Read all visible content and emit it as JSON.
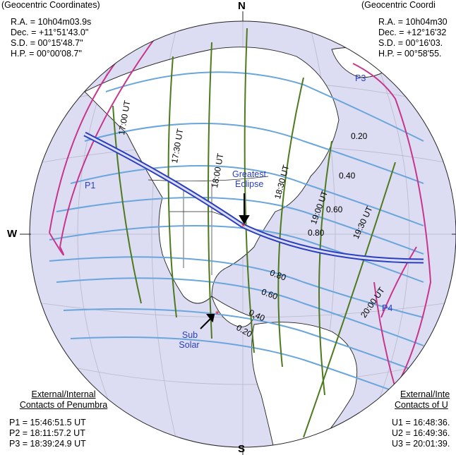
{
  "left_panel": {
    "header": "(Geocentric Coordinates)",
    "lines": [
      "R.A. = 10h04m03.9s",
      "Dec. = +11°51'43.0\"",
      "S.D. =  00°15'48.7\"",
      "H.P. =  00°00'08.7\""
    ]
  },
  "right_panel": {
    "header": "(Geocentric Coordi",
    "lines": [
      "R.A. = 10h04m30",
      "Dec. = +12°16'32",
      "S.D. =  00°16'03.",
      "H.P. =  00°58'55."
    ]
  },
  "compass": {
    "north": "N",
    "south": "S",
    "west": "W"
  },
  "time_labels": [
    "17:00 UT",
    "17:30 UT",
    "18:00 UT",
    "18:30 UT",
    "19:00 UT",
    "19:30 UT",
    "20:00 UT"
  ],
  "magnitude_labels_north": [
    "0.20",
    "0.40",
    "0.60",
    "0.80"
  ],
  "magnitude_labels_south": [
    "0.80",
    "0.60",
    "0.40",
    "0.20"
  ],
  "contact_points": [
    "P1",
    "P3",
    "P4"
  ],
  "greatest_eclipse_label": [
    "Greatest",
    "Eclipse"
  ],
  "sub_solar_label": [
    "Sub",
    "Solar"
  ],
  "penumbra_contacts": {
    "title": [
      "External/Internal",
      "Contacts of Penumbra"
    ],
    "lines": [
      "P1 = 15:46:51.5 UT",
      "P2 = 18:11:57.2 UT",
      "P3 = 18:39:24.9 UT"
    ]
  },
  "umbra_contacts": {
    "title": [
      "External/Inte",
      "Contacts of U"
    ],
    "lines": [
      "U1 = 16:48:36.",
      "U2 = 16:49:36.",
      "U3 = 20:01:39."
    ]
  },
  "colors": {
    "ocean": "#dcdcf2",
    "night": "#7a7a7a",
    "penumbra": "#c8368c",
    "magnitude": "#6aa6dc",
    "time": "#4e7a1e",
    "path": "#2a3ec0"
  }
}
